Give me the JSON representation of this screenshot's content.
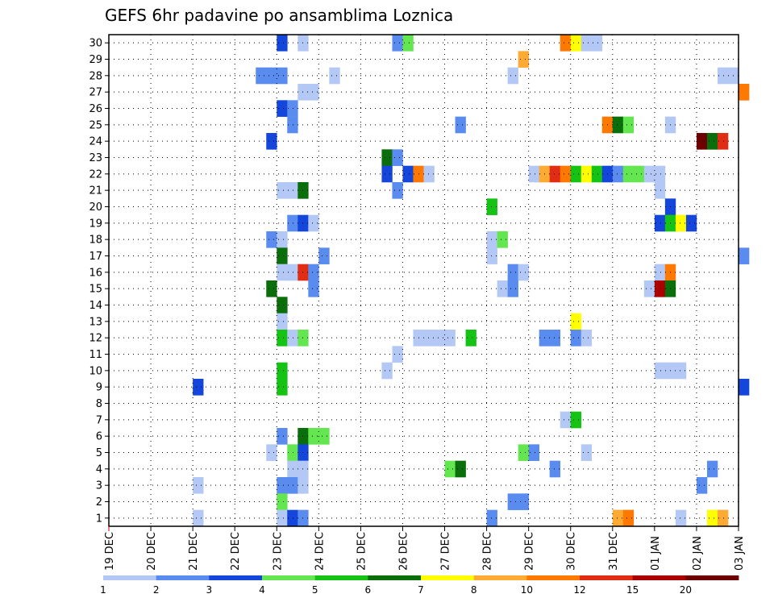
{
  "chart_data": {
    "type": "heatmap",
    "title": "GEFS 6hr padavine po ansamblima Loznica",
    "x_tick_labels": [
      "19 DEC",
      "20 DEC",
      "21 DEC",
      "22 DEC",
      "23 DEC",
      "24 DEC",
      "25 DEC",
      "26 DEC",
      "27 DEC",
      "28 DEC",
      "29 DEC",
      "30 DEC",
      "31 DEC",
      "01 JAN",
      "02 JAN",
      "03 JAN"
    ],
    "y_tick_labels": [
      "1",
      "2",
      "3",
      "4",
      "5",
      "6",
      "7",
      "8",
      "9",
      "10",
      "11",
      "12",
      "13",
      "14",
      "15",
      "16",
      "17",
      "18",
      "19",
      "20",
      "21",
      "22",
      "23",
      "24",
      "25",
      "26",
      "27",
      "28",
      "29",
      "30"
    ],
    "grid": true,
    "x_range": [
      "19 DEC 00",
      "03 JAN 00"
    ],
    "y_range": [
      0.5,
      30.5
    ],
    "time_step_hours": 6,
    "legend": {
      "placement": "bottom",
      "labels": [
        "1",
        "2",
        "3",
        "4",
        "5",
        "6",
        "7",
        "8",
        "10",
        "12",
        "15",
        "20"
      ],
      "colors": [
        "#b4c8f5",
        "#5a8cf0",
        "#1446dc",
        "#64e650",
        "#14c314",
        "#0a6e0a",
        "#ffff00",
        "#ffaa32",
        "#ff7800",
        "#e12d14",
        "#aa0000",
        "#6e0000"
      ]
    },
    "cells": [
      {
        "day": 23,
        "h": 0,
        "m": 30,
        "c": 2
      },
      {
        "day": 23,
        "h": 12,
        "m": 30,
        "c": 0
      },
      {
        "day": 25,
        "h": 18,
        "m": 30,
        "c": 1
      },
      {
        "day": 26,
        "h": 0,
        "m": 30,
        "c": 3
      },
      {
        "day": 29,
        "h": 18,
        "m": 30,
        "c": 8
      },
      {
        "day": 30,
        "h": 0,
        "m": 30,
        "c": 6
      },
      {
        "day": 30,
        "h": 6,
        "m": 30,
        "c": 0
      },
      {
        "day": 30,
        "h": 12,
        "m": 30,
        "c": 0
      },
      {
        "day": 28,
        "h": 18,
        "m": 29,
        "c": 7
      },
      {
        "day": 22,
        "h": 12,
        "m": 28,
        "c": 1
      },
      {
        "day": 22,
        "h": 18,
        "m": 28,
        "c": 1
      },
      {
        "day": 23,
        "h": 0,
        "m": 28,
        "c": 1
      },
      {
        "day": 24,
        "h": 6,
        "m": 28,
        "c": 0
      },
      {
        "day": 28,
        "h": 12,
        "m": 28,
        "c": 0
      },
      {
        "day": 33,
        "h": 12,
        "m": 28,
        "c": 0
      },
      {
        "day": 33,
        "h": 18,
        "m": 28,
        "c": 0
      },
      {
        "day": 23,
        "h": 12,
        "m": 27,
        "c": 0
      },
      {
        "day": 23,
        "h": 18,
        "m": 27,
        "c": 0
      },
      {
        "day": 34,
        "h": 0,
        "m": 27,
        "c": 8
      },
      {
        "day": 23,
        "h": 0,
        "m": 26,
        "c": 2
      },
      {
        "day": 23,
        "h": 6,
        "m": 26,
        "c": 1
      },
      {
        "day": 23,
        "h": 6,
        "m": 25,
        "c": 1
      },
      {
        "day": 27,
        "h": 6,
        "m": 25,
        "c": 1
      },
      {
        "day": 30,
        "h": 18,
        "m": 25,
        "c": 8
      },
      {
        "day": 31,
        "h": 0,
        "m": 25,
        "c": 5
      },
      {
        "day": 31,
        "h": 6,
        "m": 25,
        "c": 3
      },
      {
        "day": 32,
        "h": 6,
        "m": 25,
        "c": 0
      },
      {
        "day": 22,
        "h": 18,
        "m": 24,
        "c": 2
      },
      {
        "day": 33,
        "h": 0,
        "m": 24,
        "c": 11
      },
      {
        "day": 33,
        "h": 6,
        "m": 24,
        "c": 5
      },
      {
        "day": 33,
        "h": 12,
        "m": 24,
        "c": 9
      },
      {
        "day": 25,
        "h": 12,
        "m": 23,
        "c": 5
      },
      {
        "day": 25,
        "h": 18,
        "m": 23,
        "c": 1
      },
      {
        "day": 25,
        "h": 12,
        "m": 22,
        "c": 2
      },
      {
        "day": 26,
        "h": 0,
        "m": 22,
        "c": 2
      },
      {
        "day": 26,
        "h": 6,
        "m": 22,
        "c": 8
      },
      {
        "day": 26,
        "h": 12,
        "m": 22,
        "c": 0
      },
      {
        "day": 29,
        "h": 0,
        "m": 22,
        "c": 0
      },
      {
        "day": 29,
        "h": 6,
        "m": 22,
        "c": 7
      },
      {
        "day": 29,
        "h": 12,
        "m": 22,
        "c": 9
      },
      {
        "day": 29,
        "h": 18,
        "m": 22,
        "c": 8
      },
      {
        "day": 30,
        "h": 0,
        "m": 22,
        "c": 4
      },
      {
        "day": 30,
        "h": 6,
        "m": 22,
        "c": 6
      },
      {
        "day": 30,
        "h": 12,
        "m": 22,
        "c": 4
      },
      {
        "day": 30,
        "h": 18,
        "m": 22,
        "c": 2
      },
      {
        "day": 31,
        "h": 0,
        "m": 22,
        "c": 1
      },
      {
        "day": 31,
        "h": 6,
        "m": 22,
        "c": 3
      },
      {
        "day": 31,
        "h": 12,
        "m": 22,
        "c": 3
      },
      {
        "day": 31,
        "h": 18,
        "m": 22,
        "c": 0
      },
      {
        "day": 32,
        "h": 0,
        "m": 22,
        "c": 0
      },
      {
        "day": 23,
        "h": 0,
        "m": 21,
        "c": 0
      },
      {
        "day": 23,
        "h": 6,
        "m": 21,
        "c": 0
      },
      {
        "day": 23,
        "h": 12,
        "m": 21,
        "c": 5
      },
      {
        "day": 25,
        "h": 18,
        "m": 21,
        "c": 1
      },
      {
        "day": 32,
        "h": 0,
        "m": 21,
        "c": 0
      },
      {
        "day": 28,
        "h": 0,
        "m": 20,
        "c": 4
      },
      {
        "day": 32,
        "h": 6,
        "m": 20,
        "c": 2
      },
      {
        "day": 23,
        "h": 6,
        "m": 19,
        "c": 1
      },
      {
        "day": 23,
        "h": 12,
        "m": 19,
        "c": 2
      },
      {
        "day": 23,
        "h": 18,
        "m": 19,
        "c": 0
      },
      {
        "day": 32,
        "h": 0,
        "m": 19,
        "c": 2
      },
      {
        "day": 32,
        "h": 6,
        "m": 19,
        "c": 4
      },
      {
        "day": 32,
        "h": 12,
        "m": 19,
        "c": 6
      },
      {
        "day": 32,
        "h": 18,
        "m": 19,
        "c": 2
      },
      {
        "day": 22,
        "h": 18,
        "m": 18,
        "c": 1
      },
      {
        "day": 23,
        "h": 0,
        "m": 18,
        "c": 0
      },
      {
        "day": 28,
        "h": 0,
        "m": 18,
        "c": 0
      },
      {
        "day": 28,
        "h": 6,
        "m": 18,
        "c": 3
      },
      {
        "day": 23,
        "h": 0,
        "m": 17,
        "c": 5
      },
      {
        "day": 24,
        "h": 0,
        "m": 17,
        "c": 1
      },
      {
        "day": 28,
        "h": 0,
        "m": 17,
        "c": 0
      },
      {
        "day": 34,
        "h": 0,
        "m": 17,
        "c": 1
      },
      {
        "day": 23,
        "h": 0,
        "m": 16,
        "c": 0
      },
      {
        "day": 23,
        "h": 6,
        "m": 16,
        "c": 0
      },
      {
        "day": 23,
        "h": 12,
        "m": 16,
        "c": 9
      },
      {
        "day": 23,
        "h": 18,
        "m": 16,
        "c": 1
      },
      {
        "day": 28,
        "h": 12,
        "m": 16,
        "c": 1
      },
      {
        "day": 28,
        "h": 18,
        "m": 16,
        "c": 0
      },
      {
        "day": 32,
        "h": 0,
        "m": 16,
        "c": 0
      },
      {
        "day": 32,
        "h": 6,
        "m": 16,
        "c": 8
      },
      {
        "day": 22,
        "h": 18,
        "m": 15,
        "c": 5
      },
      {
        "day": 23,
        "h": 18,
        "m": 15,
        "c": 1
      },
      {
        "day": 28,
        "h": 6,
        "m": 15,
        "c": 0
      },
      {
        "day": 28,
        "h": 12,
        "m": 15,
        "c": 1
      },
      {
        "day": 31,
        "h": 18,
        "m": 15,
        "c": 0
      },
      {
        "day": 32,
        "h": 0,
        "m": 15,
        "c": 10
      },
      {
        "day": 32,
        "h": 6,
        "m": 15,
        "c": 5
      },
      {
        "day": 23,
        "h": 0,
        "m": 14,
        "c": 5
      },
      {
        "day": 23,
        "h": 0,
        "m": 13,
        "c": 0
      },
      {
        "day": 30,
        "h": 0,
        "m": 13,
        "c": 6
      },
      {
        "day": 23,
        "h": 0,
        "m": 12,
        "c": 4
      },
      {
        "day": 23,
        "h": 6,
        "m": 12,
        "c": 0
      },
      {
        "day": 23,
        "h": 12,
        "m": 12,
        "c": 3
      },
      {
        "day": 26,
        "h": 6,
        "m": 12,
        "c": 0
      },
      {
        "day": 26,
        "h": 12,
        "m": 12,
        "c": 0
      },
      {
        "day": 26,
        "h": 18,
        "m": 12,
        "c": 0
      },
      {
        "day": 27,
        "h": 0,
        "m": 12,
        "c": 0
      },
      {
        "day": 27,
        "h": 12,
        "m": 12,
        "c": 4
      },
      {
        "day": 29,
        "h": 6,
        "m": 12,
        "c": 1
      },
      {
        "day": 29,
        "h": 12,
        "m": 12,
        "c": 1
      },
      {
        "day": 30,
        "h": 0,
        "m": 12,
        "c": 1
      },
      {
        "day": 30,
        "h": 6,
        "m": 12,
        "c": 0
      },
      {
        "day": 25,
        "h": 18,
        "m": 11,
        "c": 0
      },
      {
        "day": 23,
        "h": 0,
        "m": 10,
        "c": 4
      },
      {
        "day": 25,
        "h": 12,
        "m": 10,
        "c": 0
      },
      {
        "day": 32,
        "h": 0,
        "m": 10,
        "c": 0
      },
      {
        "day": 32,
        "h": 6,
        "m": 10,
        "c": 0
      },
      {
        "day": 32,
        "h": 12,
        "m": 10,
        "c": 0
      },
      {
        "day": 21,
        "h": 0,
        "m": 9,
        "c": 2
      },
      {
        "day": 23,
        "h": 0,
        "m": 9,
        "c": 4
      },
      {
        "day": 34,
        "h": 0,
        "m": 9,
        "c": 2
      },
      {
        "day": 29,
        "h": 18,
        "m": 7,
        "c": 0
      },
      {
        "day": 30,
        "h": 0,
        "m": 7,
        "c": 4
      },
      {
        "day": 23,
        "h": 0,
        "m": 6,
        "c": 1
      },
      {
        "day": 23,
        "h": 12,
        "m": 6,
        "c": 5
      },
      {
        "day": 23,
        "h": 18,
        "m": 6,
        "c": 3
      },
      {
        "day": 24,
        "h": 0,
        "m": 6,
        "c": 3
      },
      {
        "day": 22,
        "h": 18,
        "m": 5,
        "c": 0
      },
      {
        "day": 23,
        "h": 6,
        "m": 5,
        "c": 3
      },
      {
        "day": 23,
        "h": 12,
        "m": 5,
        "c": 2
      },
      {
        "day": 28,
        "h": 18,
        "m": 5,
        "c": 3
      },
      {
        "day": 29,
        "h": 0,
        "m": 5,
        "c": 1
      },
      {
        "day": 30,
        "h": 6,
        "m": 5,
        "c": 0
      },
      {
        "day": 23,
        "h": 6,
        "m": 4,
        "c": 0
      },
      {
        "day": 23,
        "h": 12,
        "m": 4,
        "c": 0
      },
      {
        "day": 27,
        "h": 0,
        "m": 4,
        "c": 3
      },
      {
        "day": 27,
        "h": 6,
        "m": 4,
        "c": 5
      },
      {
        "day": 29,
        "h": 12,
        "m": 4,
        "c": 1
      },
      {
        "day": 33,
        "h": 6,
        "m": 4,
        "c": 1
      },
      {
        "day": 21,
        "h": 0,
        "m": 3,
        "c": 0
      },
      {
        "day": 23,
        "h": 0,
        "m": 3,
        "c": 1
      },
      {
        "day": 23,
        "h": 6,
        "m": 3,
        "c": 1
      },
      {
        "day": 23,
        "h": 12,
        "m": 3,
        "c": 0
      },
      {
        "day": 33,
        "h": 0,
        "m": 3,
        "c": 1
      },
      {
        "day": 23,
        "h": 0,
        "m": 2,
        "c": 3
      },
      {
        "day": 28,
        "h": 12,
        "m": 2,
        "c": 1
      },
      {
        "day": 28,
        "h": 18,
        "m": 2,
        "c": 1
      },
      {
        "day": 21,
        "h": 0,
        "m": 1,
        "c": 0
      },
      {
        "day": 23,
        "h": 0,
        "m": 1,
        "c": 0
      },
      {
        "day": 23,
        "h": 6,
        "m": 1,
        "c": 2
      },
      {
        "day": 23,
        "h": 12,
        "m": 1,
        "c": 1
      },
      {
        "day": 28,
        "h": 0,
        "m": 1,
        "c": 1
      },
      {
        "day": 31,
        "h": 0,
        "m": 1,
        "c": 7
      },
      {
        "day": 31,
        "h": 6,
        "m": 1,
        "c": 8
      },
      {
        "day": 32,
        "h": 12,
        "m": 1,
        "c": 0
      },
      {
        "day": 33,
        "h": 6,
        "m": 1,
        "c": 6
      },
      {
        "day": 33,
        "h": 12,
        "m": 1,
        "c": 7
      }
    ]
  }
}
